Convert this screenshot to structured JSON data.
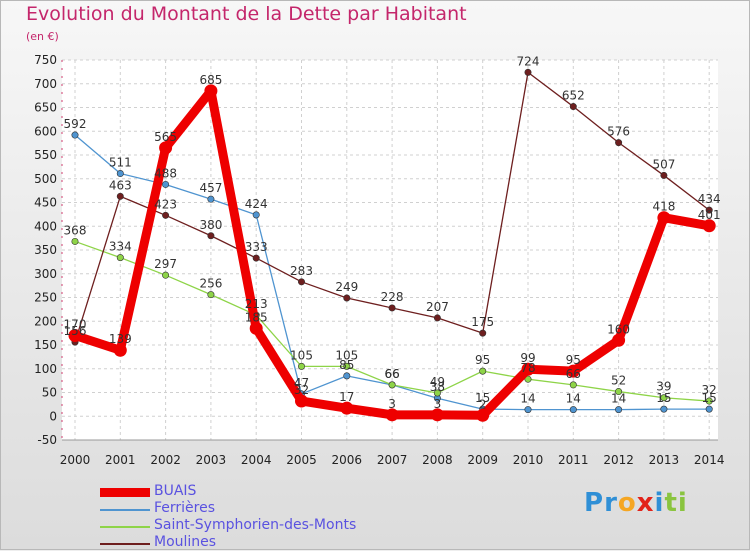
{
  "chart_data": {
    "type": "line",
    "title": "Evolution du Montant de la Dette par Habitant",
    "subtitle": "(en €)",
    "x": [
      "2000",
      "2001",
      "2002",
      "2003",
      "2004",
      "2005",
      "2006",
      "2007",
      "2008",
      "2009",
      "2010",
      "2011",
      "2012",
      "2013",
      "2014"
    ],
    "ylim": [
      -50,
      750
    ],
    "yticks": [
      -50,
      0,
      50,
      100,
      150,
      200,
      250,
      300,
      350,
      400,
      450,
      500,
      550,
      600,
      650,
      700,
      750
    ],
    "grid": true,
    "legend_placement": "bottom-left",
    "series": [
      {
        "name": "BUAIS",
        "color": "#ee0000",
        "thick": true,
        "values": [
          170,
          139,
          565,
          685,
          185,
          32,
          17,
          3,
          3,
          2,
          99,
          95,
          160,
          418,
          401
        ],
        "labels": [
          "170",
          "139",
          "565",
          "685",
          "185",
          "32",
          "17",
          "3",
          "3",
          "2",
          "99",
          "95",
          "160",
          "418",
          "401"
        ]
      },
      {
        "name": "Ferrières",
        "color": "#4f94d0",
        "thick": false,
        "values": [
          592,
          511,
          488,
          457,
          424,
          47,
          85,
          66,
          38,
          15,
          14,
          14,
          14,
          15,
          15
        ],
        "labels": [
          "592",
          "511",
          "488",
          "457",
          "424",
          "47",
          "85",
          "66",
          "38",
          "15",
          "14",
          "14",
          "14",
          "15",
          "15"
        ]
      },
      {
        "name": "Saint-Symphorien-des-Monts",
        "color": "#8ed448",
        "thick": false,
        "values": [
          368,
          334,
          297,
          256,
          213,
          105,
          105,
          66,
          49,
          95,
          78,
          66,
          52,
          39,
          32
        ],
        "labels": [
          "368",
          "334",
          "297",
          "256",
          "213",
          "105",
          "105",
          "66",
          "49",
          "95",
          "78",
          "66",
          "52",
          "39",
          "32"
        ]
      },
      {
        "name": "Moulines",
        "color": "#6e1f1f",
        "thick": false,
        "values": [
          156,
          463,
          423,
          380,
          333,
          283,
          249,
          228,
          207,
          175,
          724,
          652,
          576,
          507,
          434
        ],
        "labels": [
          "156",
          "463",
          "423",
          "380",
          "333",
          "283",
          "249",
          "228",
          "207",
          "175",
          "724",
          "652",
          "576",
          "507",
          "434"
        ]
      }
    ]
  },
  "logo": {
    "text": "Proxiti",
    "letters": [
      {
        "ch": "P",
        "color": "#2f8fd6"
      },
      {
        "ch": "r",
        "color": "#2f8fd6"
      },
      {
        "ch": "o",
        "color": "#f5a623"
      },
      {
        "ch": "x",
        "color": "#e2231a"
      },
      {
        "ch": "i",
        "color": "#2f8fd6"
      },
      {
        "ch": "t",
        "color": "#8ac43f"
      },
      {
        "ch": "i",
        "color": "#8ac43f"
      }
    ]
  }
}
